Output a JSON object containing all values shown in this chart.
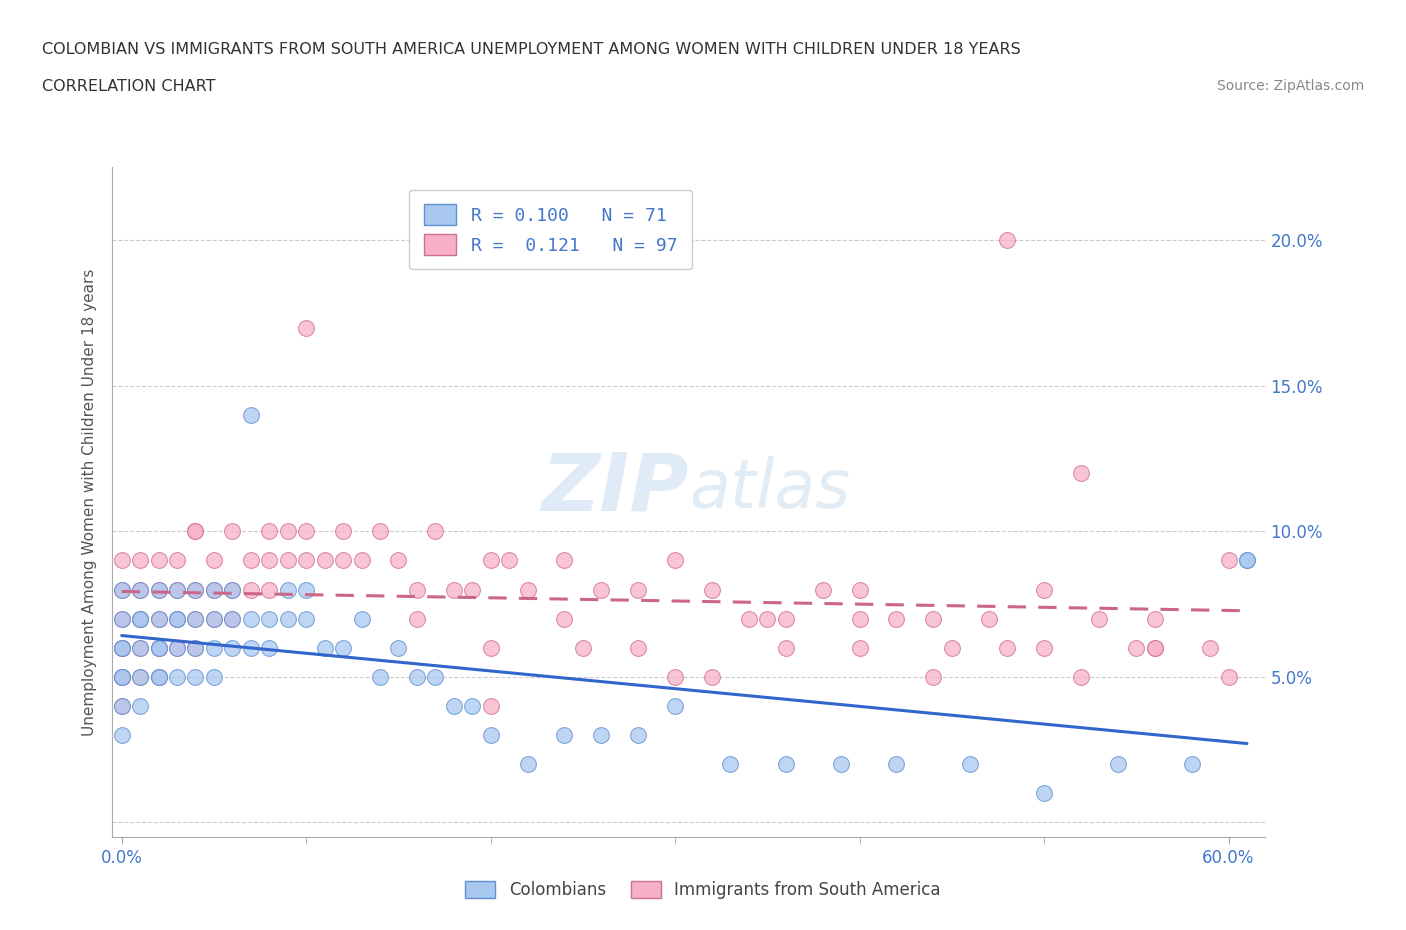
{
  "title_line1": "COLOMBIAN VS IMMIGRANTS FROM SOUTH AMERICA UNEMPLOYMENT AMONG WOMEN WITH CHILDREN UNDER 18 YEARS",
  "title_line2": "CORRELATION CHART",
  "source": "Source: ZipAtlas.com",
  "ylabel": "Unemployment Among Women with Children Under 18 years",
  "xlim": [
    -0.005,
    0.62
  ],
  "ylim": [
    -0.005,
    0.225
  ],
  "xticks": [
    0.0,
    0.6
  ],
  "xticklabels": [
    "0.0%",
    "60.0%"
  ],
  "yticks": [
    0.0,
    0.05,
    0.1,
    0.15,
    0.2
  ],
  "yticklabels": [
    "",
    "5.0%",
    "10.0%",
    "15.0%",
    "20.0%"
  ],
  "watermark": "ZIPatlas",
  "color_blue": "#A8C8F0",
  "color_blue_edge": "#6090D0",
  "color_pink": "#F8B0C8",
  "color_pink_edge": "#D07090",
  "color_blue_line": "#3366CC",
  "color_pink_line": "#CC6688",
  "color_blue_text": "#4477CC",
  "color_grid": "#CCCCCC",
  "title_color": "#333333",
  "source_color": "#888888",
  "colombians_x": [
    0.0,
    0.0,
    0.0,
    0.0,
    0.0,
    0.0,
    0.0,
    0.0,
    0.01,
    0.01,
    0.01,
    0.01,
    0.01,
    0.01,
    0.02,
    0.02,
    0.02,
    0.02,
    0.02,
    0.02,
    0.03,
    0.03,
    0.03,
    0.03,
    0.03,
    0.04,
    0.04,
    0.04,
    0.04,
    0.05,
    0.05,
    0.05,
    0.05,
    0.06,
    0.06,
    0.06,
    0.07,
    0.07,
    0.07,
    0.08,
    0.08,
    0.09,
    0.09,
    0.1,
    0.1,
    0.11,
    0.12,
    0.13,
    0.14,
    0.15,
    0.16,
    0.17,
    0.18,
    0.19,
    0.2,
    0.22,
    0.24,
    0.26,
    0.28,
    0.3,
    0.33,
    0.36,
    0.39,
    0.42,
    0.46,
    0.5,
    0.54,
    0.58,
    0.61,
    0.61
  ],
  "colombians_y": [
    0.06,
    0.05,
    0.07,
    0.04,
    0.08,
    0.03,
    0.06,
    0.05,
    0.07,
    0.06,
    0.05,
    0.08,
    0.04,
    0.07,
    0.06,
    0.07,
    0.05,
    0.08,
    0.06,
    0.05,
    0.07,
    0.06,
    0.08,
    0.05,
    0.07,
    0.06,
    0.07,
    0.05,
    0.08,
    0.07,
    0.06,
    0.08,
    0.05,
    0.07,
    0.06,
    0.08,
    0.14,
    0.07,
    0.06,
    0.07,
    0.06,
    0.08,
    0.07,
    0.08,
    0.07,
    0.06,
    0.06,
    0.07,
    0.05,
    0.06,
    0.05,
    0.05,
    0.04,
    0.04,
    0.03,
    0.02,
    0.03,
    0.03,
    0.03,
    0.04,
    0.02,
    0.02,
    0.02,
    0.02,
    0.02,
    0.01,
    0.02,
    0.02,
    0.09,
    0.09
  ],
  "immigrants_x": [
    0.0,
    0.0,
    0.0,
    0.0,
    0.0,
    0.0,
    0.0,
    0.0,
    0.01,
    0.01,
    0.01,
    0.01,
    0.01,
    0.02,
    0.02,
    0.02,
    0.02,
    0.02,
    0.03,
    0.03,
    0.03,
    0.03,
    0.04,
    0.04,
    0.04,
    0.04,
    0.05,
    0.05,
    0.05,
    0.06,
    0.06,
    0.06,
    0.07,
    0.07,
    0.08,
    0.08,
    0.09,
    0.09,
    0.1,
    0.1,
    0.1,
    0.11,
    0.12,
    0.13,
    0.14,
    0.15,
    0.16,
    0.17,
    0.18,
    0.19,
    0.2,
    0.21,
    0.22,
    0.24,
    0.26,
    0.28,
    0.3,
    0.32,
    0.34,
    0.36,
    0.38,
    0.4,
    0.42,
    0.44,
    0.47,
    0.5,
    0.53,
    0.56,
    0.59,
    0.04,
    0.08,
    0.12,
    0.16,
    0.2,
    0.24,
    0.28,
    0.32,
    0.36,
    0.4,
    0.44,
    0.48,
    0.52,
    0.56,
    0.6,
    0.2,
    0.25,
    0.3,
    0.35,
    0.4,
    0.45,
    0.5,
    0.55,
    0.6,
    0.48,
    0.52,
    0.56
  ],
  "immigrants_y": [
    0.05,
    0.06,
    0.07,
    0.04,
    0.08,
    0.05,
    0.09,
    0.06,
    0.07,
    0.06,
    0.08,
    0.05,
    0.09,
    0.06,
    0.08,
    0.07,
    0.09,
    0.05,
    0.07,
    0.09,
    0.06,
    0.08,
    0.07,
    0.1,
    0.06,
    0.08,
    0.08,
    0.07,
    0.09,
    0.08,
    0.1,
    0.07,
    0.09,
    0.08,
    0.09,
    0.08,
    0.1,
    0.09,
    0.1,
    0.09,
    0.17,
    0.09,
    0.1,
    0.09,
    0.1,
    0.09,
    0.08,
    0.1,
    0.08,
    0.08,
    0.09,
    0.09,
    0.08,
    0.09,
    0.08,
    0.08,
    0.09,
    0.08,
    0.07,
    0.07,
    0.08,
    0.07,
    0.07,
    0.07,
    0.07,
    0.06,
    0.07,
    0.07,
    0.06,
    0.1,
    0.1,
    0.09,
    0.07,
    0.06,
    0.07,
    0.06,
    0.05,
    0.06,
    0.06,
    0.05,
    0.06,
    0.05,
    0.06,
    0.05,
    0.04,
    0.06,
    0.05,
    0.07,
    0.08,
    0.06,
    0.08,
    0.06,
    0.09,
    0.2,
    0.12,
    0.06
  ]
}
